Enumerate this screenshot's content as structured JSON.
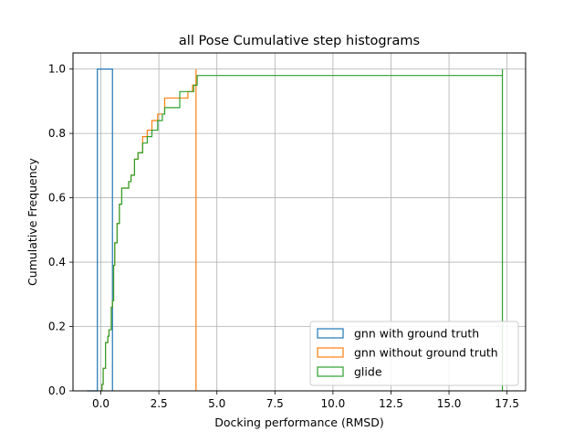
{
  "chart_data": {
    "type": "step",
    "title": "all Pose Cumulative step histograms",
    "xlabel": "Docking performance (RMSD)",
    "ylabel": "Cumulative Frequency",
    "xlim": [
      -1.2,
      18.3
    ],
    "ylim": [
      0,
      1.05
    ],
    "x_ticks": [
      0,
      2.5,
      5,
      7.5,
      10,
      12.5,
      15,
      17.5
    ],
    "x_tick_labels": [
      "0.0",
      "2.5",
      "5.0",
      "7.5",
      "10.0",
      "12.5",
      "15.0",
      "17.5"
    ],
    "y_ticks": [
      0,
      0.2,
      0.4,
      0.6,
      0.8,
      1.0
    ],
    "y_tick_labels": [
      "0.0",
      "0.2",
      "0.4",
      "0.6",
      "0.8",
      "1.0"
    ],
    "grid": true,
    "legend_position": "lower-right",
    "series": [
      {
        "name": "gnn with ground truth",
        "color": "#1f77b4",
        "x": [
          -0.6,
          -0.15,
          -0.15,
          0.03,
          0.03,
          0.5,
          0.5
        ],
        "y": [
          0,
          0,
          1.0,
          1.0,
          1.0,
          1.0,
          0
        ]
      },
      {
        "name": "gnn without ground truth",
        "color": "#ff7f0e",
        "x": [
          0.05,
          0.1,
          0.2,
          0.3,
          0.35,
          0.45,
          0.5,
          0.55,
          0.6,
          0.7,
          0.8,
          0.9,
          1.0,
          1.1,
          1.2,
          1.3,
          1.45,
          1.6,
          1.8,
          2.0,
          2.2,
          2.45,
          2.75,
          3.0,
          3.5,
          3.75,
          3.95,
          4.1,
          4.1
        ],
        "y": [
          0.02,
          0.07,
          0.15,
          0.17,
          0.19,
          0.26,
          0.28,
          0.39,
          0.46,
          0.52,
          0.58,
          0.63,
          0.63,
          0.63,
          0.65,
          0.67,
          0.72,
          0.74,
          0.79,
          0.81,
          0.84,
          0.86,
          0.91,
          0.91,
          0.91,
          0.93,
          0.95,
          1.0,
          0
        ]
      },
      {
        "name": "glide",
        "color": "#2ca02c",
        "x": [
          0.05,
          0.1,
          0.2,
          0.3,
          0.35,
          0.45,
          0.5,
          0.55,
          0.6,
          0.7,
          0.8,
          0.9,
          1.0,
          1.2,
          1.3,
          1.45,
          1.6,
          1.8,
          2.0,
          2.2,
          2.45,
          2.65,
          2.75,
          3.0,
          3.4,
          3.5,
          4.0,
          4.15,
          17.3,
          17.3
        ],
        "y": [
          0.02,
          0.07,
          0.15,
          0.17,
          0.19,
          0.26,
          0.28,
          0.39,
          0.46,
          0.52,
          0.58,
          0.63,
          0.63,
          0.65,
          0.67,
          0.72,
          0.74,
          0.77,
          0.79,
          0.81,
          0.84,
          0.86,
          0.88,
          0.88,
          0.93,
          0.93,
          0.95,
          0.98,
          1.0,
          0
        ]
      }
    ]
  }
}
